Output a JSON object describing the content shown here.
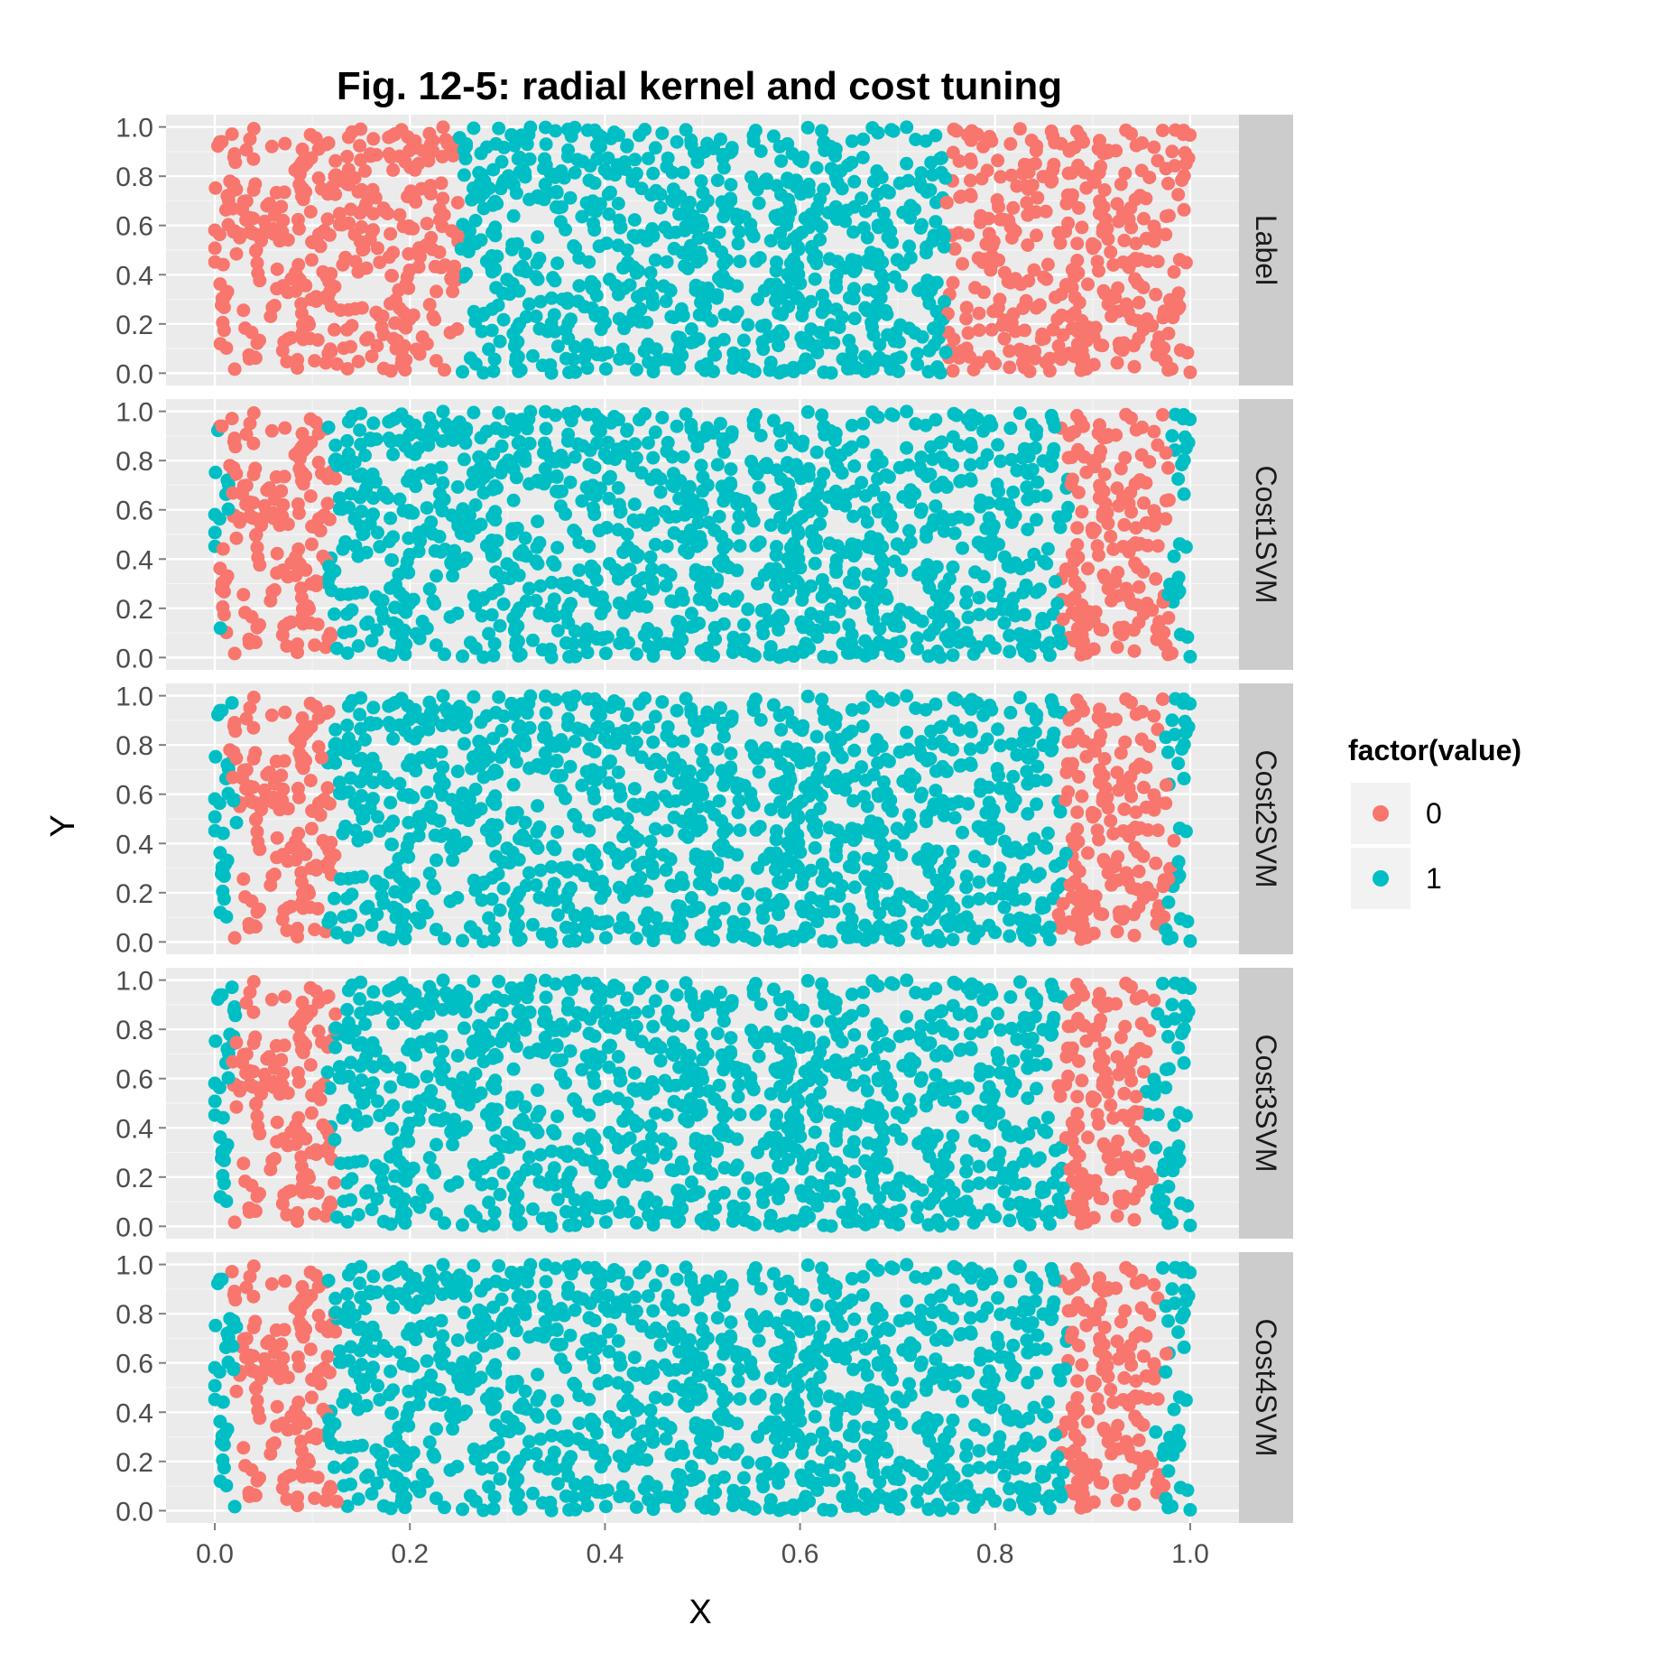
{
  "chart_data": {
    "type": "scatter",
    "title": "Fig. 12-5: radial kernel and cost tuning",
    "xlabel": "X",
    "ylabel": "Y",
    "xlim": [
      0,
      1
    ],
    "ylim": [
      0,
      1
    ],
    "x_ticks": [
      "0.0",
      "0.2",
      "0.4",
      "0.6",
      "0.8",
      "1.0"
    ],
    "y_ticks": [
      "0.0",
      "0.2",
      "0.4",
      "0.6",
      "0.8",
      "1.0"
    ],
    "grid": true,
    "legend": {
      "title": "factor(value)",
      "position": "right",
      "entries": [
        {
          "label": "0",
          "color": "#F8766D"
        },
        {
          "label": "1",
          "color": "#00BFC4"
        }
      ]
    },
    "facets": [
      {
        "label": "Label",
        "class0_regions": [
          [
            0.0,
            0.25
          ],
          [
            0.75,
            1.0
          ]
        ]
      },
      {
        "label": "Cost1SVM",
        "class0_regions": [
          [
            0.01,
            0.12
          ],
          [
            0.87,
            0.98
          ]
        ]
      },
      {
        "label": "Cost2SVM",
        "class0_regions": [
          [
            0.02,
            0.12
          ],
          [
            0.87,
            0.98
          ]
        ]
      },
      {
        "label": "Cost3SVM",
        "class0_regions": [
          [
            0.02,
            0.12
          ],
          [
            0.87,
            0.96
          ]
        ]
      },
      {
        "label": "Cost4SVM",
        "class0_regions": [
          [
            0.02,
            0.12
          ],
          [
            0.87,
            0.97
          ]
        ]
      }
    ],
    "series": [
      {
        "name": "0",
        "color": "#F8766D"
      },
      {
        "name": "1",
        "color": "#00BFC4"
      }
    ],
    "n_points_per_panel": 1500
  }
}
